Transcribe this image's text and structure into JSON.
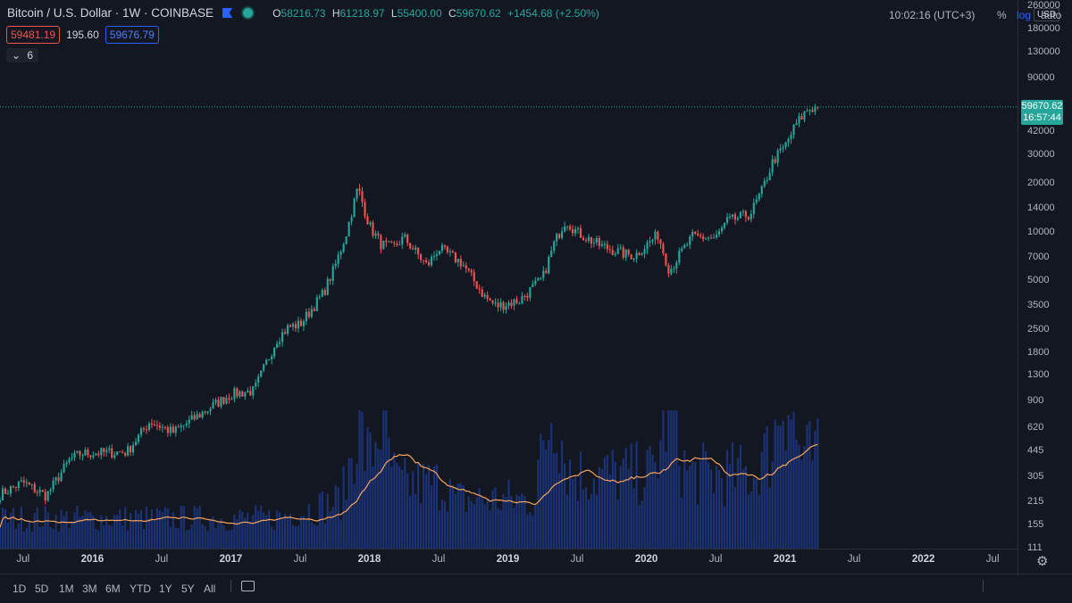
{
  "header": {
    "title": "Bitcoin / U.S. Dollar · 1W · COINBASE",
    "ohlc": {
      "o_label": "O",
      "o": "58216.73",
      "h_label": "H",
      "h": "61218.97",
      "l_label": "L",
      "l": "55400.00",
      "c_label": "C",
      "c": "59670.62",
      "change": "+1454.68 (+2.50%)"
    },
    "bid": "59481.19",
    "spread": "195.60",
    "ask": "59676.79",
    "indicators_toggle": "6"
  },
  "price_axis": {
    "currency": "USD",
    "last_price": "59670.62",
    "countdown": "16:57:44",
    "ticks": [
      "260000",
      "180000",
      "130000",
      "90000",
      "42000",
      "30000",
      "20000",
      "14000",
      "10000",
      "7000",
      "5000",
      "3500",
      "2500",
      "1800",
      "1300",
      "900",
      "620",
      "445",
      "305",
      "215",
      "155",
      "111"
    ]
  },
  "time_axis": {
    "ticks": [
      {
        "label": "Jul",
        "bold": false
      },
      {
        "label": "2016",
        "bold": true
      },
      {
        "label": "Jul",
        "bold": false
      },
      {
        "label": "2017",
        "bold": true
      },
      {
        "label": "Jul",
        "bold": false
      },
      {
        "label": "2018",
        "bold": true
      },
      {
        "label": "Jul",
        "bold": false
      },
      {
        "label": "2019",
        "bold": true
      },
      {
        "label": "Jul",
        "bold": false
      },
      {
        "label": "2020",
        "bold": true
      },
      {
        "label": "Jul",
        "bold": false
      },
      {
        "label": "2021",
        "bold": true
      },
      {
        "label": "Jul",
        "bold": false
      },
      {
        "label": "2022",
        "bold": true
      },
      {
        "label": "Jul",
        "bold": false
      }
    ]
  },
  "bottom_bar": {
    "timeframes": [
      "1D",
      "5D",
      "1M",
      "3M",
      "6M",
      "YTD",
      "1Y",
      "5Y",
      "All"
    ],
    "clock": "10:02:16 (UTC+3)",
    "percent": "%",
    "log": "log",
    "auto": "auto"
  },
  "colors": {
    "up": "#26a69a",
    "down": "#ef5350",
    "volume": "#2962ff",
    "ma": "#f7a35c",
    "background": "#131722"
  },
  "chart_data": {
    "type": "candlestick",
    "scale": "log",
    "interval": "1W",
    "x_range": [
      "2015-05",
      "2022-09"
    ],
    "y_range": [
      111,
      260000
    ],
    "anchors": [
      {
        "date": "2015-05",
        "close": 240
      },
      {
        "date": "2015-07",
        "close": 285
      },
      {
        "date": "2015-09",
        "close": 235
      },
      {
        "date": "2015-11",
        "close": 390
      },
      {
        "date": "2015-12",
        "close": 430
      },
      {
        "date": "2016-04",
        "close": 440
      },
      {
        "date": "2016-06",
        "close": 680
      },
      {
        "date": "2016-08",
        "close": 580
      },
      {
        "date": "2016-12",
        "close": 900
      },
      {
        "date": "2017-01",
        "close": 1000
      },
      {
        "date": "2017-03",
        "close": 1050
      },
      {
        "date": "2017-05",
        "close": 2200
      },
      {
        "date": "2017-06",
        "close": 2600
      },
      {
        "date": "2017-07",
        "close": 2700
      },
      {
        "date": "2017-09",
        "close": 4200
      },
      {
        "date": "2017-10",
        "close": 6100
      },
      {
        "date": "2017-11",
        "close": 9900
      },
      {
        "date": "2017-12",
        "close": 19000
      },
      {
        "date": "2018-01",
        "close": 11000
      },
      {
        "date": "2018-02",
        "close": 8500
      },
      {
        "date": "2018-03",
        "close": 8000
      },
      {
        "date": "2018-04",
        "close": 9300
      },
      {
        "date": "2018-06",
        "close": 6200
      },
      {
        "date": "2018-07",
        "close": 8000
      },
      {
        "date": "2018-09",
        "close": 6500
      },
      {
        "date": "2018-11",
        "close": 4000
      },
      {
        "date": "2018-12",
        "close": 3500
      },
      {
        "date": "2019-02",
        "close": 3800
      },
      {
        "date": "2019-04",
        "close": 5200
      },
      {
        "date": "2019-05",
        "close": 8500
      },
      {
        "date": "2019-06",
        "close": 12000
      },
      {
        "date": "2019-07",
        "close": 10000
      },
      {
        "date": "2019-09",
        "close": 8300
      },
      {
        "date": "2019-11",
        "close": 7400
      },
      {
        "date": "2019-12",
        "close": 7200
      },
      {
        "date": "2020-02",
        "close": 9700
      },
      {
        "date": "2020-03",
        "close": 5800
      },
      {
        "date": "2020-04",
        "close": 7500
      },
      {
        "date": "2020-05",
        "close": 9400
      },
      {
        "date": "2020-07",
        "close": 9200
      },
      {
        "date": "2020-08",
        "close": 11700
      },
      {
        "date": "2020-10",
        "close": 13000
      },
      {
        "date": "2020-11",
        "close": 18000
      },
      {
        "date": "2020-12",
        "close": 28000
      },
      {
        "date": "2021-01",
        "close": 34000
      },
      {
        "date": "2021-02",
        "close": 47000
      },
      {
        "date": "2021-03",
        "close": 58000
      },
      {
        "date": "2021-04",
        "close": 59670.62
      }
    ],
    "volume_peaks": [
      "2017-12",
      "2018-02",
      "2019-05",
      "2020-03",
      "2021-01"
    ]
  }
}
